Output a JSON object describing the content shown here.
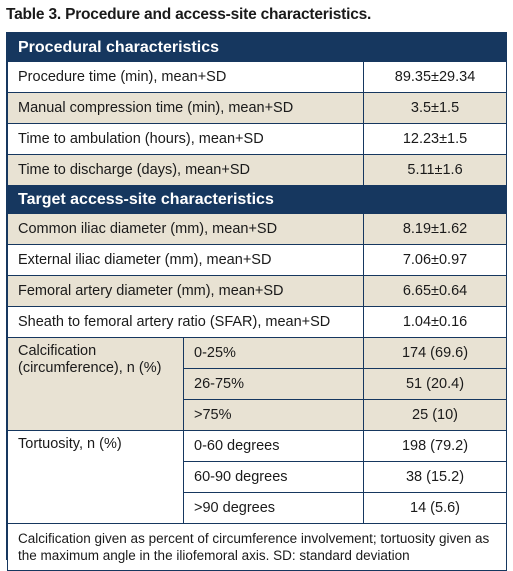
{
  "caption": "Table 3. Procedure and access-site characteristics.",
  "sections": {
    "procedural": {
      "title": "Procedural characteristics",
      "rows": [
        {
          "label": "Procedure time (min), mean+SD",
          "value": "89.35±29.34"
        },
        {
          "label": "Manual compression time (min), mean+SD",
          "value": "3.5±1.5"
        },
        {
          "label": "Time to ambulation (hours), mean+SD",
          "value": "12.23±1.5"
        },
        {
          "label": "Time to discharge (days), mean+SD",
          "value": "5.11±1.6"
        }
      ]
    },
    "access": {
      "title": "Target access-site characteristics",
      "rows": [
        {
          "label": "Common iliac diameter (mm), mean+SD",
          "value": "8.19±1.62"
        },
        {
          "label": "External iliac diameter (mm), mean+SD",
          "value": "7.06±0.97"
        },
        {
          "label": "Femoral artery diameter (mm), mean+SD",
          "value": "6.65±0.64"
        },
        {
          "label": "Sheath to femoral artery ratio (SFAR), mean+SD",
          "value": "1.04±0.16"
        }
      ],
      "calcification": {
        "label_line1": "Calcification",
        "label_line2": "(circumference), n (%)",
        "rows": [
          {
            "sub": "0-25%",
            "value": "174 (69.6)"
          },
          {
            "sub": "26-75%",
            "value": "51 (20.4)"
          },
          {
            "sub": ">75%",
            "value": "25 (10)"
          }
        ]
      },
      "tortuosity": {
        "label": "Tortuosity, n (%)",
        "rows": [
          {
            "sub": "0-60 degrees",
            "value": "198 (79.2)"
          },
          {
            "sub": "60-90 degrees",
            "value": "38 (15.2)"
          },
          {
            "sub": ">90 degrees",
            "value": "14 (5.6)"
          }
        ]
      }
    }
  },
  "footnote": "Calcification given as percent of circumference involvement; tortuosity given as the maximum angle in the iliofemoral axis. SD: standard deviation",
  "colors": {
    "header": "#16375f",
    "shade": "#e8e2d3",
    "border": "#16375f"
  }
}
